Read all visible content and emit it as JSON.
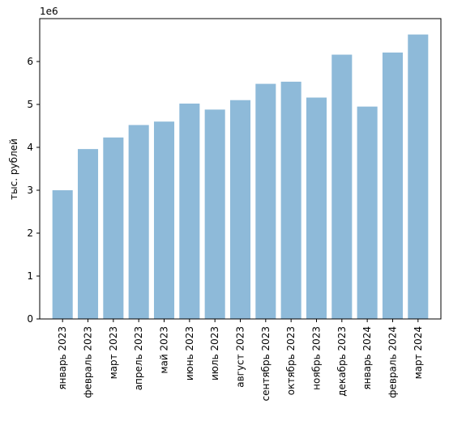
{
  "chart_data": {
    "type": "bar",
    "ylabel": "тыс. рублей",
    "xlabel": "",
    "title": "",
    "offset_text": "1e6",
    "scale": 1000000,
    "ylim": [
      0,
      7000000
    ],
    "yticks": [
      0,
      1000000,
      2000000,
      3000000,
      4000000,
      5000000,
      6000000
    ],
    "ytick_labels": [
      "0",
      "1",
      "2",
      "3",
      "4",
      "5",
      "6"
    ],
    "grid": false,
    "bar_color": "#8ebad9",
    "categories": [
      "январь 2023",
      "февраль 2023",
      "март 2023",
      "апрель 2023",
      "май 2023",
      "июнь 2023",
      "июль 2023",
      "август 2023",
      "сентябрь 2023",
      "октябрь 2023",
      "ноябрь 2023",
      "декабрь 2023",
      "январь 2024",
      "февраль 2024",
      "март 2024"
    ],
    "values": [
      3000000,
      3960000,
      4230000,
      4520000,
      4600000,
      5020000,
      4880000,
      5100000,
      5480000,
      5530000,
      5160000,
      6160000,
      4950000,
      6210000,
      6630000
    ]
  }
}
